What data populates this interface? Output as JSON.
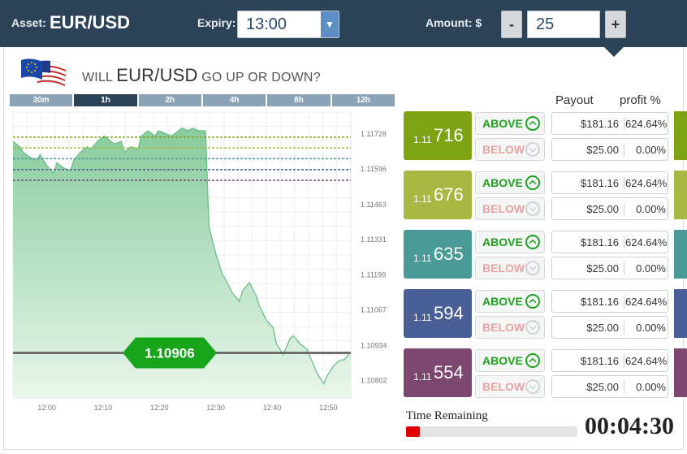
{
  "header": {
    "asset_label": "Asset:",
    "asset_value": "EUR/USD",
    "expiry_label": "Expiry:",
    "expiry_value": "13:00",
    "amount_label": "Amount: $",
    "amount_value": "25",
    "minus_label": "-",
    "plus_label": "+"
  },
  "question": {
    "prefix": "WILL ",
    "pair": "EUR/USD",
    "suffix": " GO UP OR DOWN?"
  },
  "timeframes": [
    {
      "label": "30m",
      "active": false
    },
    {
      "label": "1h",
      "active": true
    },
    {
      "label": "2h",
      "active": false
    },
    {
      "label": "4h",
      "active": false
    },
    {
      "label": "8h",
      "active": false
    },
    {
      "label": "12h",
      "active": false
    }
  ],
  "chart_data": {
    "type": "area",
    "x_ticks": [
      "12:00",
      "12:10",
      "12:20",
      "12:30",
      "12:40",
      "12:50"
    ],
    "y_ticks": [
      "1.11728",
      "1.11596",
      "1.11463",
      "1.11331",
      "1.11199",
      "1.11067",
      "1.10934",
      "1.10802"
    ],
    "xlim": [
      11.9,
      12.9
    ],
    "ylim": [
      1.10737,
      1.1181
    ],
    "current_price": "1.10906",
    "current_value": 1.10906,
    "strike_levels": [
      {
        "value": 1.11716,
        "color": "#7da212"
      },
      {
        "value": 1.11676,
        "color": "#a9b842"
      },
      {
        "value": 1.11635,
        "color": "#4a9a97"
      },
      {
        "value": 1.11594,
        "color": "#4b5f97"
      },
      {
        "value": 1.11554,
        "color": "#7d4870"
      }
    ],
    "series": [
      {
        "x": [
          11.9,
          11.92,
          11.93,
          11.95,
          11.97,
          11.98,
          12.0,
          12.02,
          12.03,
          12.05,
          12.07,
          12.08,
          12.1,
          12.12,
          12.13,
          12.15,
          12.17,
          12.18,
          12.2,
          12.22,
          12.23,
          12.25,
          12.27,
          12.28,
          12.3,
          12.31,
          12.32,
          12.33,
          12.35,
          12.37,
          12.38,
          12.4,
          12.42,
          12.43,
          12.45,
          12.47,
          12.48,
          12.5,
          12.52,
          12.53,
          12.55,
          12.57,
          12.58,
          12.6,
          12.62,
          12.63,
          12.65,
          12.67,
          12.68,
          12.7,
          12.72,
          12.73,
          12.75,
          12.77,
          12.78,
          12.8,
          12.82,
          12.83,
          12.85,
          12.87,
          12.88,
          12.9
        ],
        "y": [
          1.117,
          1.1168,
          1.1166,
          1.1164,
          1.1163,
          1.1165,
          1.1161,
          1.1158,
          1.1162,
          1.116,
          1.1159,
          1.1163,
          1.1166,
          1.1168,
          1.1167,
          1.117,
          1.1172,
          1.1171,
          1.1169,
          1.117,
          1.1166,
          1.1168,
          1.1167,
          1.1172,
          1.1174,
          1.1173,
          1.1172,
          1.1174,
          1.1173,
          1.1172,
          1.1173,
          1.1175,
          1.1174,
          1.1175,
          1.1174,
          1.1174,
          1.1138,
          1.1128,
          1.112,
          1.1118,
          1.1113,
          1.111,
          1.1114,
          1.1117,
          1.1112,
          1.1108,
          1.1103,
          1.11,
          1.1094,
          1.109,
          1.1096,
          1.1097,
          1.1094,
          1.1092,
          1.1089,
          1.1083,
          1.1079,
          1.1082,
          1.1086,
          1.1088,
          1.1088,
          1.1091
        ]
      }
    ]
  },
  "table_head": {
    "payout": "Payout",
    "profit": "profit %"
  },
  "rows": [
    {
      "small": "1.11",
      "big": "716",
      "color": "#7da212",
      "above": "ABOVE",
      "below": "BELOW",
      "payout_above": "$181.16",
      "pct_above": "624.64%",
      "payout_below": "$25.00",
      "pct_below": "0.00%"
    },
    {
      "small": "1.11",
      "big": "676",
      "color": "#a9b842",
      "above": "ABOVE",
      "below": "BELOW",
      "payout_above": "$181.16",
      "pct_above": "624.64%",
      "payout_below": "$25.00",
      "pct_below": "0.00%"
    },
    {
      "small": "1.11",
      "big": "635",
      "color": "#4a9a97",
      "above": "ABOVE",
      "below": "BELOW",
      "payout_above": "$181.16",
      "pct_above": "624.64%",
      "payout_below": "$25.00",
      "pct_below": "0.00%"
    },
    {
      "small": "1.11",
      "big": "594",
      "color": "#4b5f97",
      "above": "ABOVE",
      "below": "BELOW",
      "payout_above": "$181.16",
      "pct_above": "624.64%",
      "payout_below": "$25.00",
      "pct_below": "0.00%"
    },
    {
      "small": "1.11",
      "big": "554",
      "color": "#7d4870",
      "above": "ABOVE",
      "below": "BELOW",
      "payout_above": "$181.16",
      "pct_above": "624.64%",
      "payout_below": "$25.00",
      "pct_below": "0.00%"
    }
  ],
  "timer": {
    "label": "Time Remaining",
    "value": "00:04:30",
    "progress": 0.08
  }
}
